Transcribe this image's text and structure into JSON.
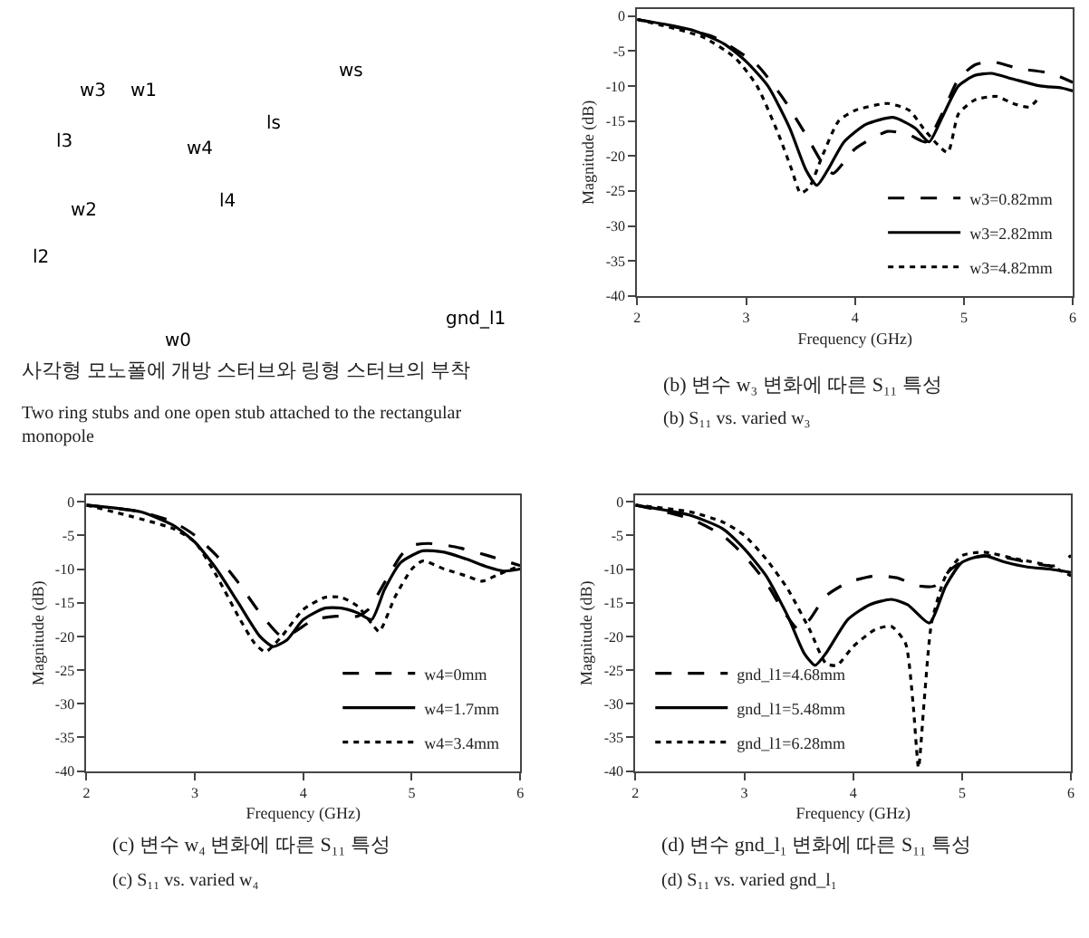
{
  "chart_data": [
    {
      "type": "other",
      "title": "사각형 모노폴에 개방 스터브와 링형 스터브의 부착",
      "subtitle": "Two ring stubs and one open stub attached to the rectangular monopole",
      "annotations": [
        "w3",
        "w1",
        "l3",
        "w4",
        "l4",
        "w2",
        "l2",
        "w0",
        "ws",
        "ls",
        "gnd_l1"
      ]
    },
    {
      "type": "line",
      "title": "(b) 변수 w₃ 변화에 따른 S₁₁ 특성",
      "subtitle": "(b) S₁₁ vs. varied w₃",
      "xlabel": "Frequency (GHz)",
      "ylabel": "Magnitude (dB)",
      "xlim": [
        2,
        6
      ],
      "ylim": [
        -40,
        1
      ],
      "xticks": [
        2,
        3,
        4,
        5,
        6
      ],
      "yticks": [
        0,
        -5,
        -10,
        -15,
        -20,
        -25,
        -30,
        -35,
        -40
      ],
      "legend": "bottom right",
      "series": [
        {
          "name": "w3=0.82mm",
          "color": "#000000",
          "line_style": "dashed",
          "x": [
            2,
            2.7,
            3.1,
            3.35,
            3.55,
            3.72,
            3.8,
            4.0,
            4.3,
            4.5,
            4.65,
            4.8,
            4.95,
            5.1,
            5.25,
            5.5,
            5.8,
            6
          ],
          "values": [
            -0.5,
            -3,
            -7,
            -12,
            -17,
            -21.5,
            -22.5,
            -19,
            -16.5,
            -17,
            -18,
            -14,
            -9,
            -7,
            -6.5,
            -7.5,
            -8.2,
            -9.5
          ]
        },
        {
          "name": "w3=2.82mm",
          "color": "#000000",
          "line_style": "solid",
          "x": [
            2,
            2.5,
            2.8,
            3.0,
            3.2,
            3.4,
            3.55,
            3.65,
            3.75,
            3.9,
            4.1,
            4.35,
            4.55,
            4.68,
            4.8,
            4.95,
            5.1,
            5.25,
            5.45,
            5.7,
            5.9,
            6
          ],
          "values": [
            -0.5,
            -2,
            -4,
            -6.5,
            -10,
            -16,
            -22,
            -24.2,
            -22,
            -18,
            -15.5,
            -14.5,
            -16,
            -18,
            -14.5,
            -10,
            -8.5,
            -8.2,
            -9,
            -10,
            -10.3,
            -10.7
          ]
        },
        {
          "name": "w3=4.82mm",
          "color": "#000000",
          "line_style": "dotted",
          "x": [
            2,
            2.6,
            2.9,
            3.1,
            3.3,
            3.42,
            3.5,
            3.58,
            3.7,
            3.85,
            4.0,
            4.3,
            4.5,
            4.65,
            4.85,
            4.95,
            5.1,
            5.3,
            5.45,
            5.6,
            5.7
          ],
          "values": [
            -0.5,
            -3,
            -6,
            -10,
            -17,
            -22,
            -25.3,
            -24.5,
            -20,
            -15,
            -13.5,
            -12.5,
            -13.5,
            -16.5,
            -19.5,
            -14,
            -12,
            -11.5,
            -12.5,
            -13,
            -11.5
          ]
        }
      ]
    },
    {
      "type": "line",
      "title": "(c) 변수 w₄ 변화에 따른 S₁₁ 특성",
      "subtitle": "(c) S₁₁ vs. varied w₄",
      "xlabel": "Frequency (GHz)",
      "ylabel": "Magnitude (dB)",
      "xlim": [
        2,
        6
      ],
      "ylim": [
        -40,
        1
      ],
      "xticks": [
        2,
        3,
        4,
        5,
        6
      ],
      "yticks": [
        0,
        -5,
        -10,
        -15,
        -20,
        -25,
        -30,
        -35,
        -40
      ],
      "legend": "bottom right",
      "series": [
        {
          "name": "w4=0mm",
          "color": "#000000",
          "line_style": "dashed",
          "x": [
            2,
            2.5,
            2.8,
            3.0,
            3.2,
            3.4,
            3.6,
            3.8,
            3.9,
            4.1,
            4.3,
            4.5,
            4.6,
            4.75,
            4.9,
            5.0,
            5.15,
            5.4,
            5.7,
            6
          ],
          "values": [
            -0.5,
            -1.5,
            -3,
            -5,
            -8,
            -12,
            -16.5,
            -20,
            -19.5,
            -17.5,
            -17,
            -17,
            -16,
            -12,
            -8,
            -6.5,
            -6.2,
            -6.7,
            -8,
            -9.5
          ]
        },
        {
          "name": "w4=1.7mm",
          "color": "#000000",
          "line_style": "solid",
          "x": [
            2,
            2.5,
            2.8,
            3.0,
            3.2,
            3.4,
            3.6,
            3.72,
            3.85,
            4.0,
            4.2,
            4.35,
            4.5,
            4.63,
            4.75,
            4.9,
            5.1,
            5.3,
            5.5,
            5.7,
            5.85,
            6
          ],
          "values": [
            -0.5,
            -1.5,
            -3.5,
            -6,
            -10,
            -15,
            -20,
            -21.5,
            -20.5,
            -17.5,
            -15.8,
            -15.8,
            -16.5,
            -17.5,
            -13,
            -9,
            -7.3,
            -7.5,
            -8.5,
            -9.7,
            -10.3,
            -10
          ]
        },
        {
          "name": "w4=3.4mm",
          "color": "#000000",
          "line_style": "dotted",
          "x": [
            2,
            2.8,
            3.0,
            3.2,
            3.4,
            3.55,
            3.65,
            3.8,
            4.0,
            4.2,
            4.35,
            4.5,
            4.65,
            4.7,
            4.85,
            5.0,
            5.1,
            5.3,
            5.5,
            5.65,
            5.8,
            6
          ],
          "values": [
            -0.5,
            -4,
            -6,
            -11,
            -17,
            -21,
            -22.3,
            -20,
            -16,
            -14.2,
            -14.2,
            -15.5,
            -18.5,
            -19.3,
            -14,
            -10,
            -8.8,
            -10,
            -11,
            -11.8,
            -10.8,
            -9.5
          ]
        }
      ]
    },
    {
      "type": "line",
      "title": "(d) 변수 gnd_l₁ 변화에 따른 S₁₁ 특성",
      "subtitle": "(d) S₁₁ vs. varied gnd_l₁",
      "xlabel": "Frequency (GHz)",
      "ylabel": "Magnitude (dB)",
      "xlim": [
        2,
        6
      ],
      "ylim": [
        -40,
        1
      ],
      "xticks": [
        2,
        3,
        4,
        5,
        6
      ],
      "yticks": [
        0,
        -5,
        -10,
        -15,
        -20,
        -25,
        -30,
        -35,
        -40
      ],
      "legend": "bottom left",
      "series": [
        {
          "name": "gnd_l1=4.68mm",
          "color": "#000000",
          "line_style": "dashed",
          "x": [
            2,
            2.5,
            2.8,
            3.0,
            3.2,
            3.35,
            3.5,
            3.6,
            3.75,
            3.95,
            4.2,
            4.4,
            4.6,
            4.75,
            4.9,
            5.05,
            5.3,
            5.6,
            5.85,
            6
          ],
          "values": [
            -0.5,
            -2.5,
            -5,
            -8,
            -12,
            -16,
            -19,
            -17.5,
            -14,
            -12,
            -11,
            -11.3,
            -12.5,
            -12.5,
            -10,
            -8.5,
            -8,
            -9,
            -9.5,
            -8
          ]
        },
        {
          "name": "gnd_l1=5.48mm",
          "color": "#000000",
          "line_style": "solid",
          "x": [
            2,
            2.5,
            2.8,
            3.0,
            3.2,
            3.4,
            3.55,
            3.65,
            3.75,
            3.95,
            4.15,
            4.35,
            4.5,
            4.7,
            4.85,
            5.0,
            5.2,
            5.4,
            5.6,
            5.8,
            6
          ],
          "values": [
            -0.5,
            -2,
            -4,
            -7,
            -11,
            -17,
            -22.5,
            -24.3,
            -22.5,
            -17.5,
            -15.3,
            -14.5,
            -15.3,
            -18,
            -12.5,
            -9,
            -8,
            -9,
            -9.7,
            -10,
            -10.5
          ]
        },
        {
          "name": "gnd_l1=6.28mm",
          "color": "#000000",
          "line_style": "dotted",
          "x": [
            2,
            2.5,
            2.8,
            3.0,
            3.2,
            3.4,
            3.6,
            3.75,
            3.85,
            4.0,
            4.2,
            4.35,
            4.48,
            4.55,
            4.6,
            4.65,
            4.72,
            4.85,
            5.0,
            5.2,
            5.5,
            5.8,
            6
          ],
          "values": [
            -0.5,
            -1.5,
            -3,
            -5,
            -8.5,
            -13,
            -19,
            -24,
            -24.3,
            -21.5,
            -19,
            -18.5,
            -21,
            -30,
            -39.5,
            -30,
            -18,
            -11,
            -8,
            -7.5,
            -8.5,
            -9.5,
            -11
          ]
        }
      ]
    }
  ]
}
